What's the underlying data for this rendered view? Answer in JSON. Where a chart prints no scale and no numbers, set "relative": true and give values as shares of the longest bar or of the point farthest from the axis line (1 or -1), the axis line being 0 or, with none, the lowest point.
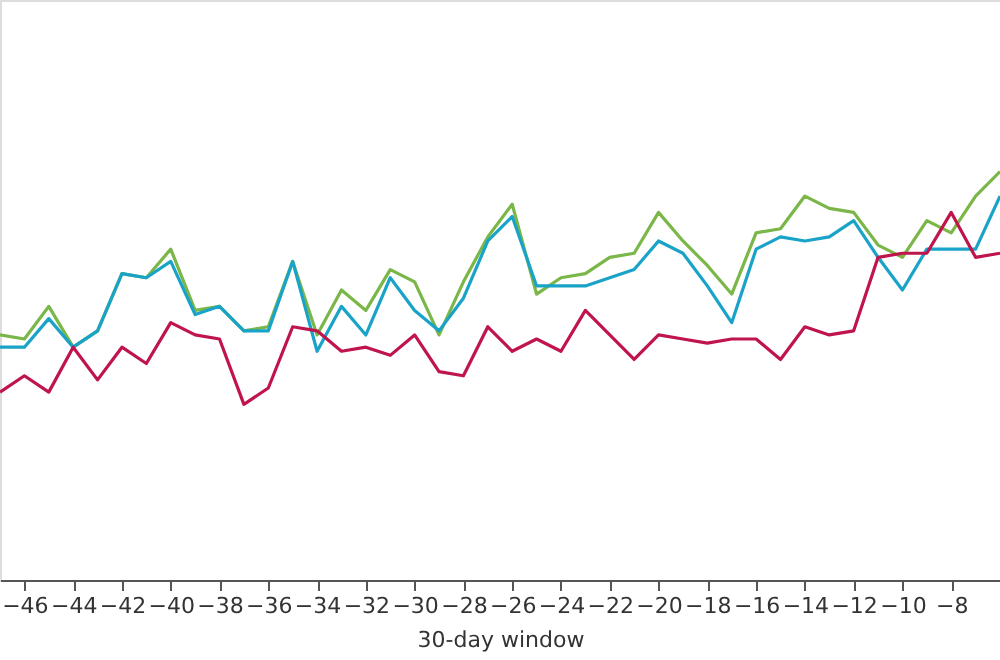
{
  "chart_data": {
    "type": "line",
    "xlabel": "30-day window",
    "relative": true,
    "grid": false,
    "legend": false,
    "marker": "none",
    "line_style": "solid",
    "x": [
      -47,
      -46,
      -45,
      -44,
      -43,
      -42,
      -41,
      -40,
      -39,
      -38,
      -37,
      -36,
      -35,
      -34,
      -33,
      -32,
      -31,
      -30,
      -29,
      -28,
      -27,
      -26,
      -25,
      -24,
      -23,
      -22,
      -21,
      -20,
      -19,
      -18,
      -17,
      -16,
      -15,
      -14,
      -13,
      -12,
      -11,
      -10,
      -9,
      -8,
      -7,
      -6
    ],
    "xlim": [
      -47,
      -6
    ],
    "xticks": [
      -46,
      -44,
      -42,
      -40,
      -38,
      -36,
      -34,
      -32,
      -30,
      -28,
      -26,
      -24,
      -22,
      -20,
      -18,
      -16,
      -14,
      -12,
      -10,
      -8
    ],
    "series": [
      {
        "color": "#7ab648",
        "values": [
          0.6,
          0.59,
          0.67,
          0.57,
          0.61,
          0.75,
          0.74,
          0.81,
          0.66,
          0.67,
          0.61,
          0.62,
          0.78,
          0.6,
          0.71,
          0.66,
          0.76,
          0.73,
          0.6,
          0.73,
          0.84,
          0.92,
          0.7,
          0.74,
          0.75,
          0.79,
          0.8,
          0.9,
          0.83,
          0.77,
          0.7,
          0.85,
          0.86,
          0.94,
          0.91,
          0.9,
          0.82,
          0.79,
          0.88,
          0.85,
          0.94,
          1
        ]
      },
      {
        "color": "#1aa3c8",
        "values": [
          0.57,
          0.57,
          0.64,
          0.57,
          0.61,
          0.75,
          0.74,
          0.78,
          0.65,
          0.67,
          0.61,
          0.61,
          0.78,
          0.56,
          0.67,
          0.6,
          0.74,
          0.66,
          0.61,
          0.69,
          0.83,
          0.89,
          0.72,
          0.72,
          0.72,
          0.74,
          0.76,
          0.83,
          0.8,
          0.72,
          0.63,
          0.81,
          0.84,
          0.83,
          0.84,
          0.88,
          0.79,
          0.71,
          0.81,
          0.81,
          0.81,
          0.94
        ]
      },
      {
        "color": "#c0144c",
        "values": [
          0.46,
          0.5,
          0.46,
          0.57,
          0.49,
          0.57,
          0.53,
          0.63,
          0.6,
          0.59,
          0.43,
          0.47,
          0.62,
          0.61,
          0.56,
          0.57,
          0.55,
          0.6,
          0.51,
          0.5,
          0.62,
          0.56,
          0.59,
          0.56,
          0.66,
          0.6,
          0.54,
          0.6,
          0.59,
          0.58,
          0.59,
          0.59,
          0.54,
          0.62,
          0.6,
          0.61,
          0.79,
          0.8,
          0.8,
          0.9,
          0.79,
          0.8
        ]
      }
    ]
  }
}
